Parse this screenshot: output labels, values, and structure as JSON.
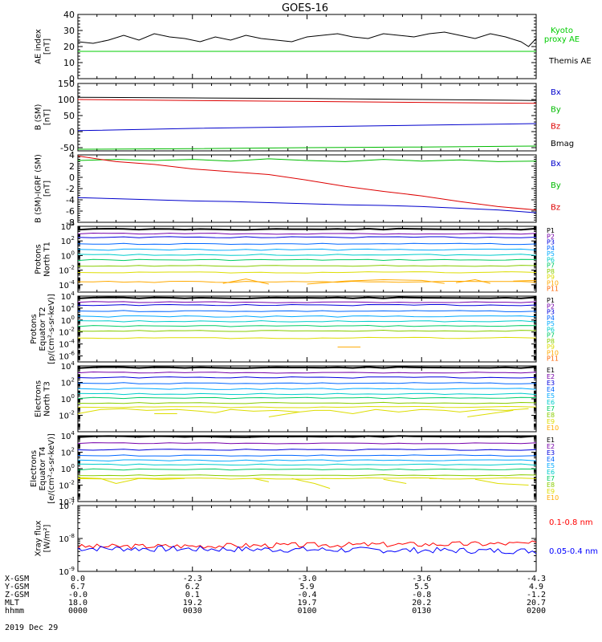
{
  "title": "GOES-16",
  "date_label": "2019 Dec 29",
  "colors": {
    "p": [
      "#000000",
      "#7700aa",
      "#0000dd",
      "#0066ff",
      "#00aaff",
      "#00cccc",
      "#00cc66",
      "#88cc00",
      "#dddd00",
      "#ffaa00",
      "#ff6600",
      "#dd0000"
    ],
    "e": [
      "#000000",
      "#7700aa",
      "#0000dd",
      "#0066ff",
      "#00aaff",
      "#00cccc",
      "#00cc66",
      "#88cc00",
      "#dddd00",
      "#ffaa00",
      "#dd0000"
    ],
    "b": {
      "x": "#0000cc",
      "y": "#00bb00",
      "z": "#dd0000",
      "mag": "#000000"
    },
    "ae_kyoto": "#00cc00",
    "ae_themis": "#000000",
    "xray_long": "#ff0000",
    "xray_short": "#0000ff"
  },
  "ephemeris": {
    "labels": [
      "X-GSM",
      "Y-GSM",
      "Z-GSM",
      "MLT",
      "hhmm"
    ],
    "columns": [
      [
        "0.0",
        "6.7",
        "-0.0",
        "18.0",
        "0000"
      ],
      [
        "-2.3",
        "6.2",
        "0.1",
        "19.2",
        "0030"
      ],
      [
        "-3.0",
        "5.9",
        "-0.4",
        "19.7",
        "0100"
      ],
      [
        "-3.6",
        "5.5",
        "-0.8",
        "20.2",
        "0130"
      ],
      [
        "-4.3",
        "4.9",
        "-1.2",
        "20.7",
        "0200"
      ]
    ]
  },
  "chart_data": [
    {
      "type": "line",
      "panel": "ae",
      "ylabel": [
        "AE index",
        "[nT]"
      ],
      "ylim": [
        0,
        40
      ],
      "yticks": [
        "0",
        "10",
        "20",
        "30",
        "40"
      ],
      "series": [
        {
          "name": "Kyoto proxy AE",
          "name_lines": [
            "Kyoto",
            "proxy AE"
          ],
          "color_key": "ae_kyoto",
          "x": [
            0,
            120
          ],
          "values": [
            17,
            17
          ]
        },
        {
          "name": "Themis AE",
          "name_lines": [
            "Themis AE"
          ],
          "color_key": "ae_themis",
          "x": [
            0,
            4,
            8,
            12,
            16,
            20,
            24,
            28,
            32,
            36,
            40,
            44,
            48,
            52,
            56,
            60,
            64,
            68,
            72,
            76,
            80,
            84,
            88,
            92,
            96,
            100,
            104,
            108,
            112,
            116,
            118,
            120
          ],
          "values": [
            23,
            22,
            24,
            27,
            24,
            28,
            26,
            25,
            23,
            26,
            24,
            27,
            25,
            24,
            23,
            26,
            27,
            28,
            26,
            25,
            28,
            27,
            26,
            28,
            29,
            27,
            25,
            28,
            26,
            23,
            20,
            25
          ]
        }
      ]
    },
    {
      "type": "line",
      "panel": "bsm",
      "ylabel": [
        "B (SM)",
        "[nT]"
      ],
      "ylim": [
        -60,
        150
      ],
      "yticks": [
        "-50",
        "0",
        "50",
        "100",
        "150"
      ],
      "ytick_values": [
        -50,
        0,
        50,
        100,
        150
      ],
      "series": [
        {
          "name": "Bx",
          "color_key": "b.x",
          "x": [
            0,
            30,
            60,
            90,
            120
          ],
          "values": [
            3,
            10,
            15,
            20,
            25
          ]
        },
        {
          "name": "By",
          "color_key": "b.y",
          "x": [
            0,
            30,
            60,
            90,
            120
          ],
          "values": [
            -55,
            -53,
            -50,
            -48,
            -45
          ]
        },
        {
          "name": "Bz",
          "color_key": "b.z",
          "x": [
            0,
            30,
            60,
            90,
            120
          ],
          "values": [
            100,
            97,
            94,
            91,
            88
          ]
        },
        {
          "name": "Bmag",
          "color_key": "b.mag",
          "x": [
            0,
            30,
            60,
            90,
            120
          ],
          "values": [
            107,
            105,
            103,
            100,
            97
          ]
        }
      ]
    },
    {
      "type": "line",
      "panel": "bigrf",
      "ylabel": [
        "B (SM)-IGRF (SM)",
        "[nT]"
      ],
      "ylim": [
        -8,
        4
      ],
      "yticks": [
        "-8",
        "-6",
        "-4",
        "-2",
        "0",
        "2",
        "4"
      ],
      "ytick_values": [
        -8,
        -6,
        -4,
        -2,
        0,
        2,
        4
      ],
      "series": [
        {
          "name": "Bx",
          "color_key": "b.x",
          "x": [
            0,
            10,
            20,
            30,
            40,
            50,
            60,
            70,
            80,
            90,
            100,
            110,
            120
          ],
          "values": [
            -3.6,
            -3.8,
            -4.0,
            -4.2,
            -4.3,
            -4.5,
            -4.7,
            -4.9,
            -5.0,
            -5.2,
            -5.5,
            -5.8,
            -6.3
          ]
        },
        {
          "name": "By",
          "color_key": "b.y",
          "x": [
            0,
            10,
            20,
            30,
            40,
            50,
            60,
            70,
            80,
            90,
            100,
            110,
            120
          ],
          "values": [
            3.0,
            3.2,
            3.0,
            3.2,
            2.9,
            3.3,
            3.0,
            2.8,
            3.2,
            2.9,
            3.1,
            2.8,
            2.9
          ]
        },
        {
          "name": "Bz",
          "color_key": "b.z",
          "x": [
            0,
            10,
            20,
            30,
            40,
            50,
            60,
            70,
            80,
            90,
            100,
            110,
            120
          ],
          "values": [
            3.8,
            2.8,
            2.3,
            1.5,
            1.0,
            0.5,
            -0.5,
            -1.6,
            -2.5,
            -3.3,
            -4.3,
            -5.2,
            -5.8
          ]
        }
      ]
    },
    {
      "type": "line",
      "panel": "p_north",
      "ylabel": [
        "Protons",
        "North T1"
      ],
      "log": true,
      "ylim_exp": [
        -5,
        4
      ],
      "ytick_exps": [
        -4,
        -2,
        0,
        2,
        4
      ],
      "channels": [
        "P1",
        "P2",
        "P3",
        "P4",
        "P5",
        "P6",
        "P7",
        "P8",
        "P9",
        "P10",
        "P11"
      ],
      "levels_exp": [
        3.6,
        3.0,
        2.5,
        1.6,
        0.8,
        0.1,
        -0.6,
        -1.4,
        -2.3,
        -3.6,
        null
      ],
      "sparse": {
        "channel": "P10",
        "segments": [
          [
            [
              38,
              -3.8
            ],
            [
              44,
              -3.2
            ],
            [
              50,
              -3.9
            ]
          ],
          [
            [
              60,
              -3.9
            ],
            [
              70,
              -3.5
            ],
            [
              80,
              -3.3
            ],
            [
              90,
              -3.4
            ],
            [
              96,
              -3.8
            ]
          ],
          [
            [
              99,
              -3.7
            ],
            [
              104,
              -3.3
            ],
            [
              108,
              -3.8
            ]
          ],
          [
            [
              114,
              -3.5
            ],
            [
              120,
              -3.4
            ]
          ]
        ]
      }
    },
    {
      "type": "line",
      "panel": "p_eq",
      "ylabel": [
        "Protons",
        "Equator T2",
        "[p/(cm²-s-sr-keV)]"
      ],
      "log": true,
      "ylim_exp": [
        -7,
        4
      ],
      "ytick_exps": [
        -6,
        -4,
        -2,
        0,
        2,
        4
      ],
      "channels": [
        "P1",
        "P2",
        "P3",
        "P4",
        "P5",
        "P6",
        "P7",
        "P8",
        "P9",
        "P10",
        "P11"
      ],
      "levels_exp": [
        3.7,
        3.0,
        2.5,
        1.5,
        0.6,
        -0.2,
        -1.0,
        -1.8,
        -3.0,
        null,
        null
      ],
      "sparse": {
        "channel": "P10",
        "segments": [
          [
            [
              68,
              -4.5
            ],
            [
              74,
              -4.5
            ]
          ]
        ]
      }
    },
    {
      "type": "line",
      "panel": "e_north",
      "ylabel": [
        "Electrons",
        "North T3"
      ],
      "log": true,
      "ylim_exp": [
        -4,
        4
      ],
      "ytick_exps": [
        -2,
        0,
        2,
        4
      ],
      "channels": [
        "E1",
        "E2",
        "E3",
        "E4",
        "E5",
        "E6",
        "E7",
        "E8",
        "E9",
        "E10"
      ],
      "levels_exp": [
        3.8,
        3.2,
        2.6,
        1.9,
        1.2,
        0.6,
        0.1,
        -0.5,
        -1.0,
        null
      ],
      "sparse": {
        "channel": "E9",
        "segments": [
          [
            [
              0,
              -1.8
            ],
            [
              6,
              -1.3
            ],
            [
              12,
              -1.2
            ],
            [
              18,
              -1.4
            ],
            [
              26,
              -1.3
            ],
            [
              32,
              -1.5
            ],
            [
              36,
              -1.7
            ],
            [
              40,
              -1.3
            ],
            [
              46,
              -1.5
            ],
            [
              52,
              -1.4
            ],
            [
              58,
              -1.6
            ],
            [
              62,
              -1.4
            ],
            [
              66,
              -1.4
            ],
            [
              72,
              -1.8
            ],
            [
              78,
              -1.3
            ],
            [
              84,
              -1.6
            ],
            [
              90,
              -1.3
            ],
            [
              96,
              -1.4
            ],
            [
              100,
              -1.6
            ],
            [
              106,
              -1.3
            ],
            [
              112,
              -1.4
            ],
            [
              118,
              -1.2
            ]
          ],
          [
            [
              20,
              -1.8
            ],
            [
              26,
              -1.8
            ]
          ],
          [
            [
              50,
              -2.2
            ],
            [
              58,
              -1.6
            ]
          ],
          [
            [
              102,
              -2.2
            ],
            [
              114,
              -1.4
            ]
          ]
        ]
      }
    },
    {
      "type": "line",
      "panel": "e_eq",
      "ylabel": [
        "Electrons",
        "Equator T4",
        "[e/(cm²-s-sr-keV)]"
      ],
      "log": true,
      "ylim_exp": [
        -4,
        4
      ],
      "ytick_exps": [
        -4,
        -2,
        0,
        2,
        4
      ],
      "channels": [
        "E1",
        "E2",
        "E3",
        "E4",
        "E5",
        "E6",
        "E7",
        "E8",
        "E9",
        "E10"
      ],
      "levels_exp": [
        3.9,
        3.1,
        2.3,
        1.6,
        1.0,
        0.5,
        -0.1,
        -0.8,
        -1.2,
        null
      ],
      "sparse": {
        "channel": "E9",
        "segments": [
          [
            [
              0,
              -1.1
            ],
            [
              6,
              -1.2
            ],
            [
              10,
              -1.8
            ],
            [
              16,
              -1.2
            ],
            [
              22,
              -1.3
            ],
            [
              28,
              -1.2
            ]
          ],
          [
            [
              46,
              -1.2
            ],
            [
              50,
              -1.6
            ]
          ],
          [
            [
              56,
              -1.2
            ],
            [
              62,
              -1.8
            ],
            [
              66,
              -2.4
            ]
          ],
          [
            [
              80,
              -1.3
            ],
            [
              86,
              -1.8
            ]
          ],
          [
            [
              92,
              -1.2
            ],
            [
              94,
              -1.2
            ]
          ],
          [
            [
              104,
              -1.3
            ],
            [
              110,
              -1.8
            ],
            [
              118,
              -2.0
            ]
          ]
        ]
      }
    },
    {
      "type": "line",
      "panel": "xray",
      "ylabel": [
        "Xray flux",
        "[W/m²]"
      ],
      "log": true,
      "ylim_exp": [
        -9,
        -7
      ],
      "ytick_exps": [
        -9,
        -8,
        -7
      ],
      "series": [
        {
          "name": "0.1-0.8 nm",
          "color_key": "xray_long",
          "base_exp": -8.25,
          "trend": 0.1,
          "amp": 0.08,
          "seed": 3
        },
        {
          "name": "0.05-0.4 nm",
          "color_key": "xray_short",
          "base_exp": -8.3,
          "trend": -0.08,
          "amp": 0.09,
          "seed": 7
        }
      ]
    }
  ]
}
